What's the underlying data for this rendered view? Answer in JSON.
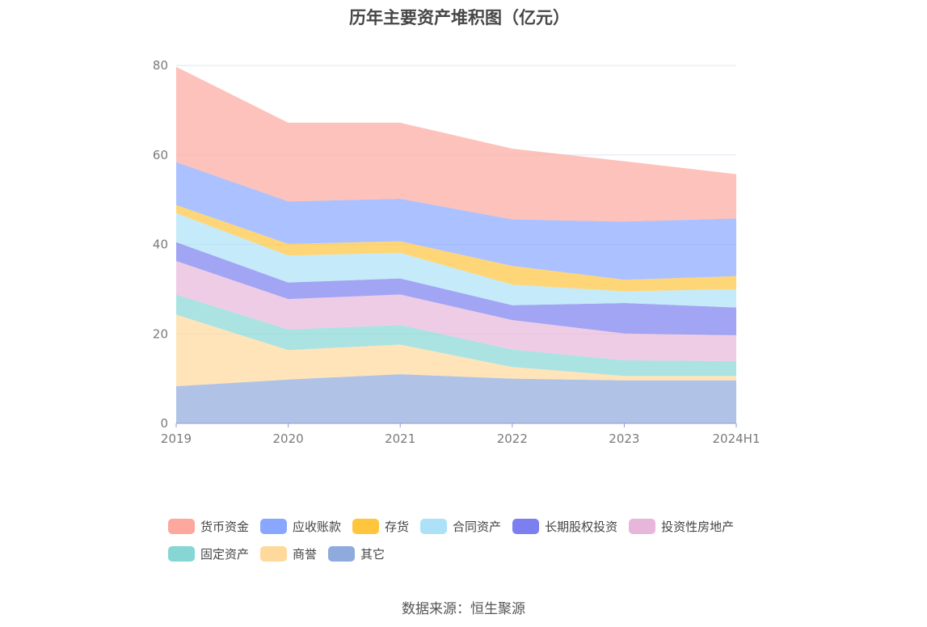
{
  "title": "历年主要资产堆积图（亿元）",
  "source": "数据来源：恒生聚源",
  "chart_data": {
    "type": "area",
    "stacked": true,
    "title": "历年主要资产堆积图（亿元）",
    "x": [
      "2019",
      "2020",
      "2021",
      "2022",
      "2023",
      "2024H1"
    ],
    "ylim": [
      0,
      80
    ],
    "yticks": [
      0,
      20,
      40,
      60,
      80
    ],
    "grid": true,
    "legend_position": "bottom",
    "series": [
      {
        "name": "其它",
        "color": "#8FAADC",
        "values": [
          8.3,
          9.8,
          11.0,
          10.0,
          9.6,
          9.6
        ]
      },
      {
        "name": "商誉",
        "color": "#FFD99B",
        "values": [
          16.0,
          6.6,
          6.6,
          2.6,
          1.0,
          1.0
        ]
      },
      {
        "name": "固定资产",
        "color": "#86D7D4",
        "values": [
          4.5,
          4.6,
          4.4,
          3.9,
          3.5,
          3.3
        ]
      },
      {
        "name": "投资性房地产",
        "color": "#E8B6DA",
        "values": [
          7.5,
          6.8,
          6.8,
          6.6,
          6.0,
          5.8
        ]
      },
      {
        "name": "长期股权投资",
        "color": "#7B7FF0",
        "values": [
          4.2,
          3.7,
          3.6,
          3.3,
          6.8,
          6.2
        ]
      },
      {
        "name": "合同资产",
        "color": "#ACE1F8",
        "values": [
          6.5,
          6.0,
          5.7,
          4.6,
          2.6,
          4.1
        ]
      },
      {
        "name": "存货",
        "color": "#FFC53D",
        "values": [
          1.8,
          2.6,
          2.6,
          4.2,
          2.6,
          2.9
        ]
      },
      {
        "name": "应收账款",
        "color": "#89A7FF",
        "values": [
          9.6,
          9.5,
          9.5,
          10.4,
          13.0,
          12.9
        ]
      },
      {
        "name": "货币资金",
        "color": "#FCA89E",
        "values": [
          21.3,
          17.6,
          17.0,
          15.8,
          13.5,
          9.9
        ]
      }
    ]
  },
  "legend": {
    "row1": [
      "货币资金",
      "应收账款",
      "存货",
      "合同资产",
      "长期股权投资",
      "投资性房地产"
    ],
    "row2": [
      "固定资产",
      "商誉",
      "其它"
    ],
    "colors1": [
      "#FCA89E",
      "#89A7FF",
      "#FFC53D",
      "#ACE1F8",
      "#7B7FF0",
      "#E8B6DA"
    ],
    "colors2": [
      "#86D7D4",
      "#FFD99B",
      "#8FAADC"
    ]
  }
}
